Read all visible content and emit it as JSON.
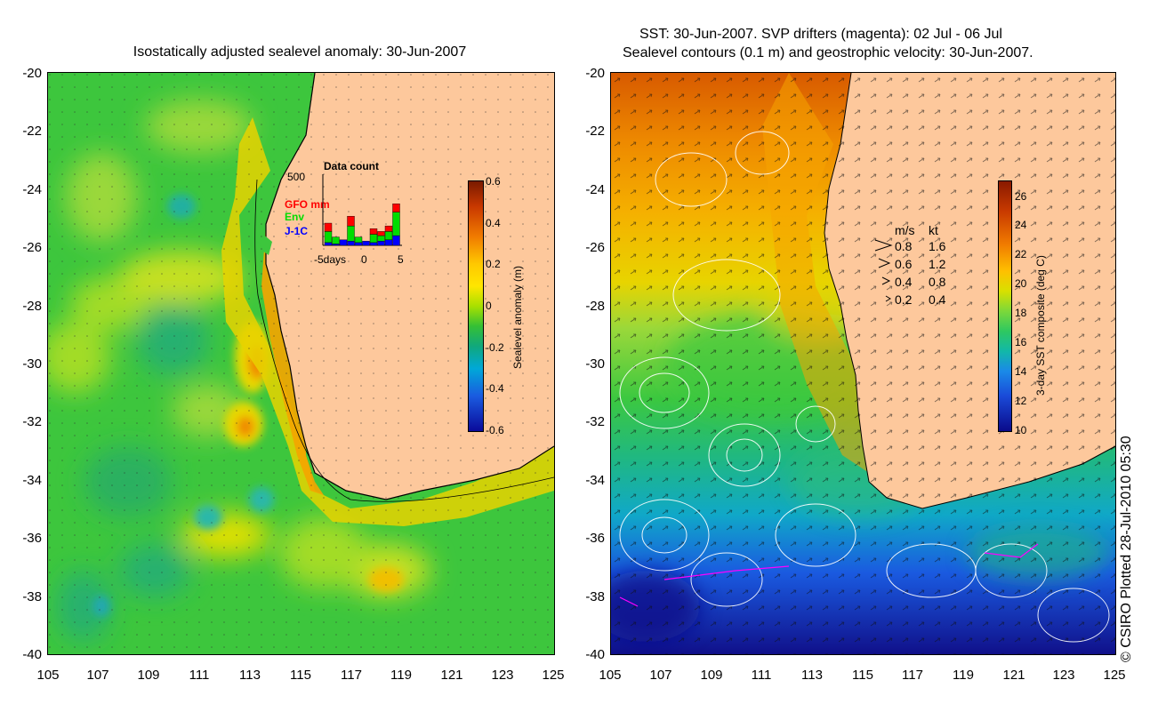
{
  "left_panel": {
    "title": "Isostatically adjusted sealevel anomaly: 30-Jun-2007",
    "y_ticks": [
      "-20",
      "-22",
      "-24",
      "-26",
      "-28",
      "-30",
      "-32",
      "-34",
      "-36",
      "-38",
      "-40"
    ],
    "x_ticks": [
      "105",
      "107",
      "109",
      "111",
      "113",
      "115",
      "117",
      "119",
      "121",
      "123",
      "125"
    ],
    "colorbar": {
      "label": "Sealevel anomaly (m)",
      "ticks": [
        "0.6",
        "0.4",
        "0.2",
        "0",
        "-0.2",
        "-0.4",
        "-0.6"
      ]
    },
    "data_count": {
      "title": "Data count",
      "max_label": "500",
      "series_labels": [
        "GFO mm",
        "Env",
        "J-1C"
      ],
      "series_colors": [
        "#ff0000",
        "#00dd00",
        "#0000ff"
      ],
      "x_labels": [
        "-5days",
        "0",
        "5"
      ],
      "bars": [
        {
          "red": 60,
          "green": 80,
          "blue": 20
        },
        {
          "red": 0,
          "green": 50,
          "blue": 10
        },
        {
          "red": 0,
          "green": 0,
          "blue": 40
        },
        {
          "red": 70,
          "green": 110,
          "blue": 30
        },
        {
          "red": 0,
          "green": 40,
          "blue": 20
        },
        {
          "red": 0,
          "green": 0,
          "blue": 30
        },
        {
          "red": 40,
          "green": 60,
          "blue": 20
        },
        {
          "red": 30,
          "green": 40,
          "blue": 30
        },
        {
          "red": 40,
          "green": 60,
          "blue": 40
        },
        {
          "red": 60,
          "green": 170,
          "blue": 70
        }
      ]
    }
  },
  "right_panel": {
    "title_line1": "SST: 30-Jun-2007. SVP drifters (magenta): 02 Jul - 06 Jul",
    "title_line2": "Sealevel contours (0.1 m) and geostrophic velocity: 30-Jun-2007.",
    "y_ticks": [
      "-20",
      "-22",
      "-24",
      "-26",
      "-28",
      "-30",
      "-32",
      "-34",
      "-36",
      "-38",
      "-40"
    ],
    "x_ticks": [
      "105",
      "107",
      "109",
      "111",
      "113",
      "115",
      "117",
      "119",
      "121",
      "123",
      "125"
    ],
    "colorbar": {
      "label": "3-day SST composite (deg C)",
      "ticks": [
        "26",
        "24",
        "22",
        "20",
        "18",
        "16",
        "14",
        "12",
        "10"
      ]
    },
    "velocity_legend": {
      "header_ms": "m/s",
      "header_kt": "kt",
      "rows": [
        {
          "ms": "0.8",
          "kt": "1.6"
        },
        {
          "ms": "0.6",
          "kt": "1.2"
        },
        {
          "ms": "0.4",
          "kt": "0.8"
        },
        {
          "ms": "0.2",
          "kt": "0.4"
        }
      ]
    }
  },
  "credit": "© CSIRO Plotted 28-Jul-2010 05:30",
  "colors": {
    "land": "#fdc89c",
    "ocean_green": "#3dc63d",
    "anomaly_colormap": [
      "#7a1a00",
      "#e04a00",
      "#ff9a00",
      "#ffe200",
      "#a8e000",
      "#35c035",
      "#0fa37a",
      "#00a7d8",
      "#1a5be0",
      "#0a0a9a"
    ],
    "sst_colormap": [
      "#8a1a00",
      "#d84a00",
      "#f59000",
      "#ffd000",
      "#bde000",
      "#3cc840",
      "#10b4a0",
      "#1a8ae8",
      "#1a3ad0",
      "#0a0a8a"
    ]
  }
}
